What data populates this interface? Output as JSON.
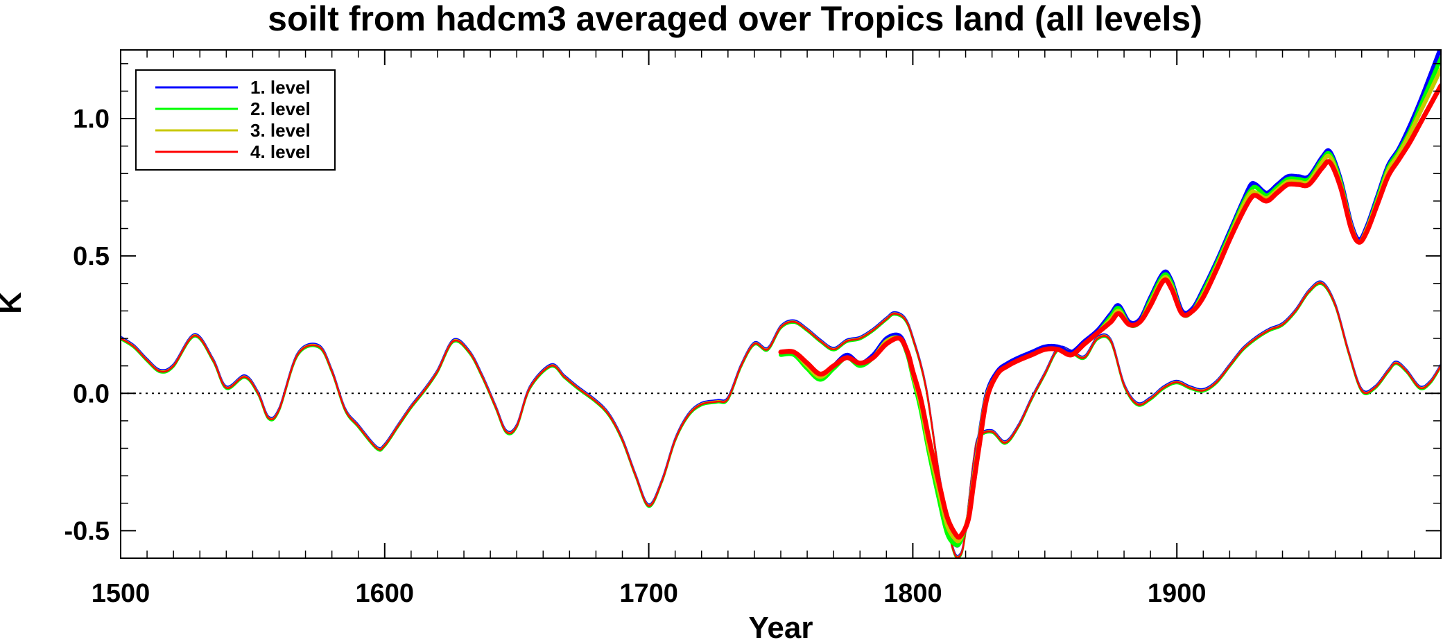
{
  "chart_data": {
    "type": "line",
    "title": "soilt from hadcm3 averaged over Tropics land (all levels)",
    "xlabel": "Year",
    "ylabel": "K",
    "xlim": [
      1500,
      2000
    ],
    "ylim": [
      -0.6,
      1.25
    ],
    "x_ticks": [
      1500,
      1600,
      1700,
      1800,
      1900
    ],
    "y_ticks": [
      -0.5,
      0.0,
      0.5,
      1.0
    ],
    "y_tick_labels": [
      "-0.5",
      "0.0",
      "0.5",
      "1.0"
    ],
    "zero_line": true,
    "legend_position": "top-left",
    "series": [
      {
        "name": "1. level",
        "color": "#0000ff"
      },
      {
        "name": "2. level",
        "color": "#00ff00"
      },
      {
        "name": "3. level",
        "color": "#c8c800"
      },
      {
        "name": "4. level",
        "color": "#ff0000"
      }
    ],
    "long_run": {
      "x": [
        1500,
        1505,
        1510,
        1515,
        1520,
        1528,
        1535,
        1540,
        1547,
        1552,
        1556,
        1560,
        1567,
        1575,
        1580,
        1585,
        1590,
        1597,
        1600,
        1605,
        1610,
        1615,
        1620,
        1626,
        1632,
        1637,
        1642,
        1646,
        1650,
        1655,
        1663,
        1668,
        1673,
        1680,
        1685,
        1690,
        1695,
        1700,
        1705,
        1710,
        1715,
        1720,
        1726,
        1730,
        1735,
        1740,
        1745,
        1750,
        1755,
        1760,
        1765,
        1770,
        1775,
        1780,
        1785,
        1790,
        1793,
        1797,
        1800,
        1805,
        1810,
        1815,
        1818,
        1820,
        1823,
        1825,
        1830,
        1835,
        1840,
        1845,
        1850,
        1855,
        1860,
        1865,
        1870,
        1875,
        1880,
        1885,
        1890,
        1895,
        1900,
        1905,
        1910,
        1915,
        1920,
        1925,
        1930,
        1935,
        1940,
        1945,
        1950,
        1955,
        1960,
        1965,
        1970,
        1975,
        1980,
        1983,
        1987,
        1992,
        1996,
        2000
      ],
      "level1": [
        0.2,
        0.17,
        0.12,
        0.08,
        0.1,
        0.21,
        0.12,
        0.02,
        0.06,
        0.0,
        -0.09,
        -0.06,
        0.14,
        0.17,
        0.08,
        -0.06,
        -0.12,
        -0.2,
        -0.19,
        -0.12,
        -0.05,
        0.01,
        0.08,
        0.19,
        0.15,
        0.06,
        -0.05,
        -0.14,
        -0.12,
        0.02,
        0.1,
        0.06,
        0.02,
        -0.03,
        -0.08,
        -0.17,
        -0.3,
        -0.41,
        -0.32,
        -0.17,
        -0.08,
        -0.04,
        -0.03,
        -0.02,
        0.1,
        0.18,
        0.16,
        0.24,
        0.26,
        0.23,
        0.19,
        0.16,
        0.19,
        0.2,
        0.23,
        0.27,
        0.29,
        0.27,
        0.2,
        0.02,
        -0.3,
        -0.56,
        -0.59,
        -0.5,
        -0.25,
        -0.16,
        -0.14,
        -0.18,
        -0.12,
        -0.02,
        0.07,
        0.16,
        0.15,
        0.13,
        0.2,
        0.19,
        0.03,
        -0.04,
        -0.02,
        0.02,
        0.04,
        0.02,
        0.01,
        0.04,
        0.1,
        0.16,
        0.2,
        0.23,
        0.25,
        0.3,
        0.37,
        0.4,
        0.32,
        0.15,
        0.01,
        0.02,
        0.08,
        0.11,
        0.08,
        0.02,
        0.04,
        0.1
      ]
    },
    "short_run": {
      "x": [
        1750,
        1755,
        1760,
        1765,
        1770,
        1775,
        1780,
        1785,
        1790,
        1795,
        1798,
        1800,
        1803,
        1806,
        1810,
        1813,
        1816,
        1818,
        1821,
        1823,
        1825,
        1828,
        1832,
        1836,
        1840,
        1845,
        1850,
        1855,
        1860,
        1865,
        1870,
        1875,
        1878,
        1882,
        1886,
        1890,
        1895,
        1898,
        1902,
        1906,
        1910,
        1915,
        1920,
        1925,
        1928,
        1930,
        1934,
        1938,
        1942,
        1946,
        1950,
        1955,
        1958,
        1962,
        1966,
        1969,
        1972,
        1976,
        1980,
        1984,
        1988,
        1992,
        1996,
        2000
      ],
      "level1": [
        0.15,
        0.15,
        0.1,
        0.06,
        0.1,
        0.14,
        0.11,
        0.14,
        0.2,
        0.21,
        0.15,
        0.07,
        -0.05,
        -0.2,
        -0.38,
        -0.5,
        -0.55,
        -0.54,
        -0.45,
        -0.3,
        -0.17,
        0.0,
        0.08,
        0.11,
        0.13,
        0.15,
        0.17,
        0.17,
        0.15,
        0.19,
        0.23,
        0.29,
        0.32,
        0.26,
        0.27,
        0.35,
        0.44,
        0.41,
        0.3,
        0.31,
        0.38,
        0.48,
        0.59,
        0.7,
        0.76,
        0.76,
        0.73,
        0.76,
        0.79,
        0.79,
        0.79,
        0.86,
        0.88,
        0.78,
        0.62,
        0.56,
        0.61,
        0.72,
        0.83,
        0.89,
        0.97,
        1.06,
        1.16,
        1.26
      ],
      "level2": [
        0.14,
        0.14,
        0.09,
        0.05,
        0.09,
        0.13,
        0.1,
        0.13,
        0.19,
        0.2,
        0.14,
        0.06,
        -0.06,
        -0.21,
        -0.39,
        -0.51,
        -0.55,
        -0.54,
        -0.45,
        -0.31,
        -0.18,
        -0.01,
        0.07,
        0.1,
        0.12,
        0.14,
        0.16,
        0.16,
        0.14,
        0.18,
        0.22,
        0.28,
        0.31,
        0.25,
        0.26,
        0.34,
        0.43,
        0.4,
        0.29,
        0.3,
        0.37,
        0.47,
        0.58,
        0.69,
        0.74,
        0.75,
        0.72,
        0.75,
        0.78,
        0.78,
        0.78,
        0.85,
        0.87,
        0.77,
        0.61,
        0.55,
        0.6,
        0.71,
        0.82,
        0.88,
        0.95,
        1.04,
        1.13,
        1.22
      ],
      "level3": [
        0.15,
        0.15,
        0.1,
        0.06,
        0.1,
        0.13,
        0.11,
        0.13,
        0.19,
        0.2,
        0.15,
        0.07,
        -0.04,
        -0.19,
        -0.36,
        -0.48,
        -0.53,
        -0.53,
        -0.45,
        -0.31,
        -0.18,
        -0.01,
        0.07,
        0.1,
        0.12,
        0.14,
        0.16,
        0.16,
        0.14,
        0.18,
        0.22,
        0.27,
        0.3,
        0.25,
        0.26,
        0.33,
        0.42,
        0.39,
        0.29,
        0.3,
        0.36,
        0.46,
        0.57,
        0.68,
        0.73,
        0.73,
        0.71,
        0.74,
        0.77,
        0.77,
        0.77,
        0.84,
        0.86,
        0.76,
        0.61,
        0.55,
        0.6,
        0.7,
        0.81,
        0.87,
        0.94,
        1.02,
        1.1,
        1.18
      ],
      "level4": [
        0.15,
        0.15,
        0.11,
        0.07,
        0.1,
        0.13,
        0.11,
        0.13,
        0.18,
        0.2,
        0.15,
        0.08,
        -0.02,
        -0.16,
        -0.33,
        -0.45,
        -0.51,
        -0.52,
        -0.46,
        -0.33,
        -0.2,
        -0.02,
        0.07,
        0.1,
        0.12,
        0.14,
        0.16,
        0.16,
        0.14,
        0.18,
        0.22,
        0.26,
        0.29,
        0.25,
        0.26,
        0.32,
        0.41,
        0.38,
        0.29,
        0.3,
        0.35,
        0.45,
        0.56,
        0.66,
        0.71,
        0.72,
        0.7,
        0.73,
        0.76,
        0.76,
        0.76,
        0.82,
        0.84,
        0.75,
        0.6,
        0.55,
        0.59,
        0.69,
        0.79,
        0.85,
        0.91,
        0.98,
        1.05,
        1.12
      ]
    }
  }
}
